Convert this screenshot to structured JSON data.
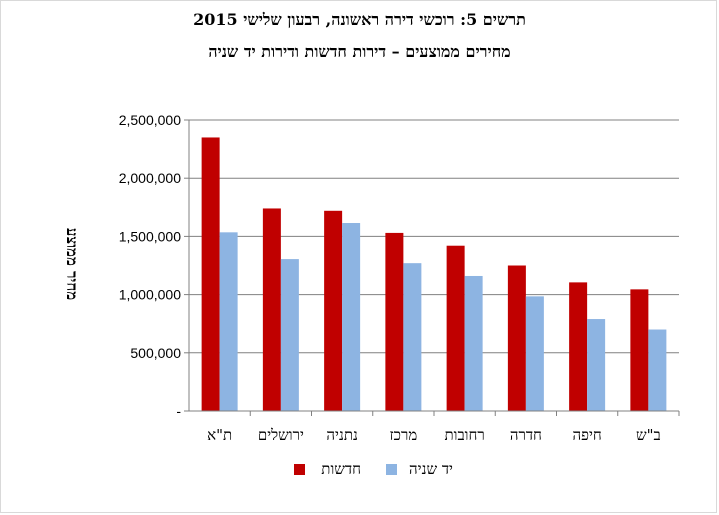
{
  "chart_data": {
    "type": "bar",
    "title": "תרשים 5: רוכשי דירה ראשונה, רבעון שלישי 2015",
    "subtitle": "מחירים ממוצעים – דירות חדשות ודירות יד שניה",
    "ylabel": "מחיר ממוצע",
    "xlabel": "",
    "ylim": [
      0,
      2500000
    ],
    "yticks": [
      0,
      500000,
      1000000,
      1500000,
      2000000,
      2500000
    ],
    "ytick_labels": [
      "-",
      "500,000",
      "1,000,000",
      "1,500,000",
      "2,000,000",
      "2,500,000"
    ],
    "grid": true,
    "legend_position": "bottom",
    "categories": [
      "ת\"א",
      "ירושלים",
      "נתניה",
      "מרכז",
      "רחובות",
      "חדרה",
      "חיפה",
      "ב\"ש"
    ],
    "series": [
      {
        "name": "חדשות",
        "color": "#c00000",
        "values": [
          2350000,
          1740000,
          1720000,
          1530000,
          1420000,
          1250000,
          1105000,
          1045000
        ]
      },
      {
        "name": "יד שניה",
        "color": "#8db4e2",
        "values": [
          1535000,
          1305000,
          1615000,
          1270000,
          1160000,
          985000,
          790000,
          700000
        ]
      }
    ]
  }
}
